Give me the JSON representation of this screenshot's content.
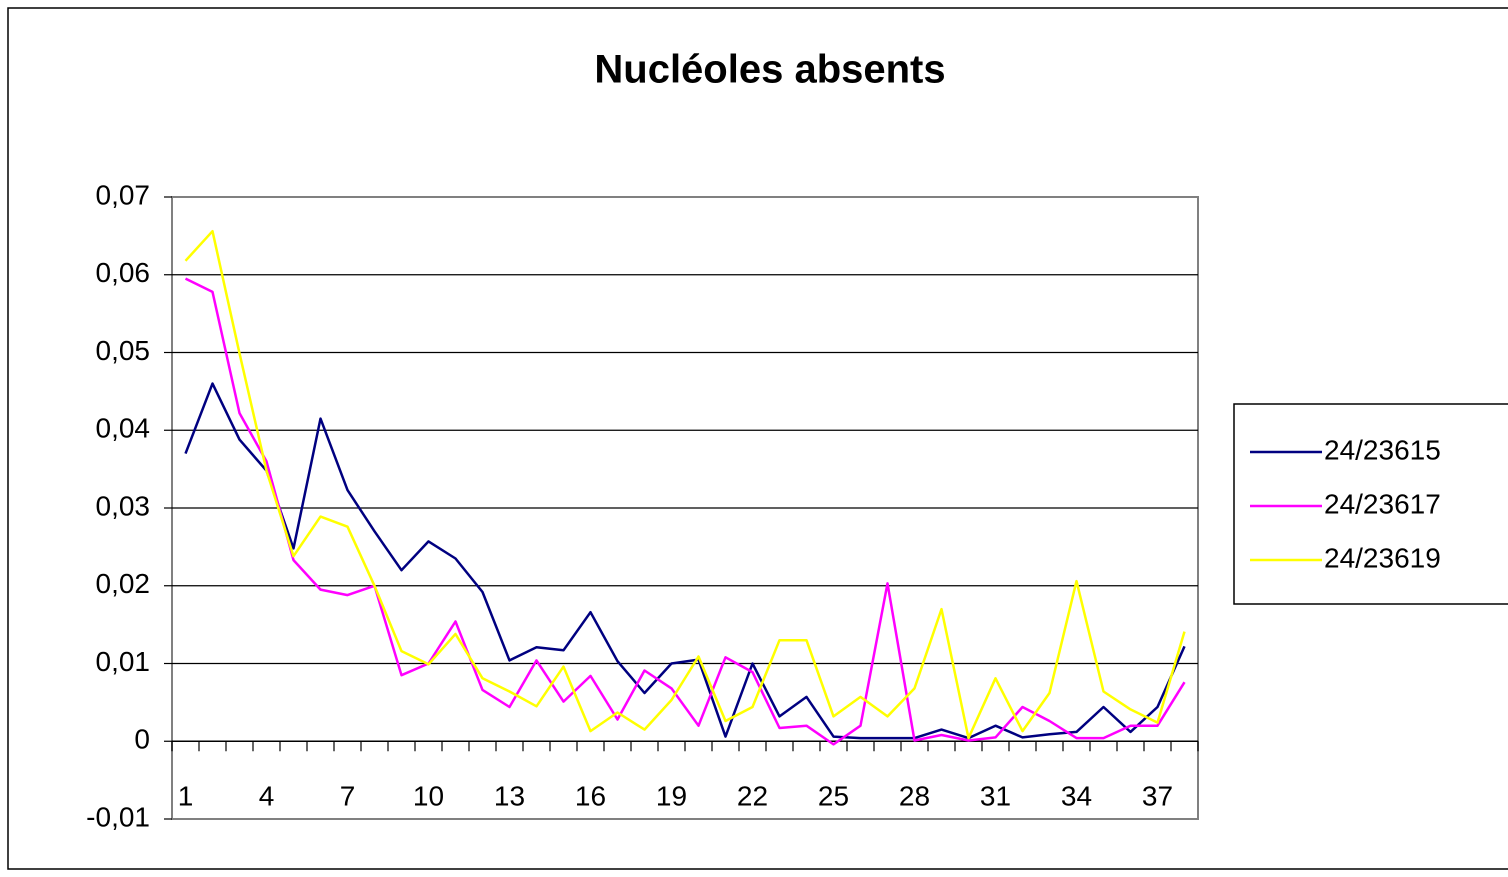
{
  "chart_data": {
    "type": "line",
    "title": "Nucléoles absents",
    "categories": [
      1,
      null,
      null,
      4,
      null,
      null,
      7,
      null,
      null,
      10,
      null,
      null,
      13,
      null,
      null,
      16,
      null,
      null,
      19,
      null,
      null,
      22,
      null,
      null,
      25,
      null,
      null,
      28,
      null,
      null,
      31,
      null,
      null,
      34,
      null,
      null,
      37,
      null
    ],
    "series": [
      {
        "name": "24/23615",
        "color": "#000080",
        "values": [
          0.037,
          0.046,
          0.0388,
          0.0348,
          0.0248,
          0.0415,
          0.0323,
          0.027,
          0.022,
          0.0257,
          0.0235,
          0.0192,
          0.0104,
          0.0121,
          0.0117,
          0.0166,
          0.0103,
          0.0062,
          0.01,
          0.0105,
          0.0006,
          0.01,
          0.0032,
          0.0057,
          0.0006,
          0.0004,
          0.0004,
          0.0004,
          0.0015,
          0.0004,
          0.002,
          0.0005,
          0.0009,
          0.0012,
          0.0044,
          0.0012,
          0.0044,
          0.0122
        ]
      },
      {
        "name": "24/23617",
        "color": "#ff00ff",
        "values": [
          0.0595,
          0.0578,
          0.0422,
          0.036,
          0.0233,
          0.0195,
          0.0188,
          0.02,
          0.0085,
          0.01,
          0.0154,
          0.0066,
          0.0044,
          0.0104,
          0.0051,
          0.0084,
          0.0028,
          0.0091,
          0.0068,
          0.002,
          0.0108,
          0.0089,
          0.0017,
          0.002,
          -0.0004,
          0.002,
          0.0203,
          0.0001,
          0.0008,
          0.0001,
          0.0005,
          0.0044,
          0.0026,
          0.0004,
          0.0004,
          0.002,
          0.002,
          0.0076
        ]
      },
      {
        "name": "24/23619",
        "color": "#ffff00",
        "values": [
          0.0618,
          0.0656,
          0.0499,
          0.0348,
          0.0238,
          0.0289,
          0.0276,
          0.02,
          0.0116,
          0.0099,
          0.0138,
          0.0081,
          0.0064,
          0.0045,
          0.0096,
          0.0013,
          0.0037,
          0.0015,
          0.0053,
          0.0109,
          0.0026,
          0.0044,
          0.013,
          0.013,
          0.0032,
          0.0057,
          0.0032,
          0.0068,
          0.017,
          0.0004,
          0.0081,
          0.0013,
          0.0062,
          0.0206,
          0.0064,
          0.0041,
          0.0024,
          0.0141
        ]
      }
    ],
    "ylim": [
      -0.01,
      0.07
    ],
    "yticks": [
      {
        "value": -0.01,
        "label": "-0,01"
      },
      0,
      {
        "value": 0.01,
        "label": "0,01"
      },
      {
        "value": 0.02,
        "label": "0,02"
      },
      {
        "value": 0.03,
        "label": "0,03"
      },
      {
        "value": 0.04,
        "label": "0,04"
      },
      {
        "value": 0.05,
        "label": "0,05"
      },
      {
        "value": 0.06,
        "label": "0,06"
      },
      {
        "value": 0.07,
        "label": "0,07"
      }
    ],
    "grid": true,
    "legend": "right"
  }
}
